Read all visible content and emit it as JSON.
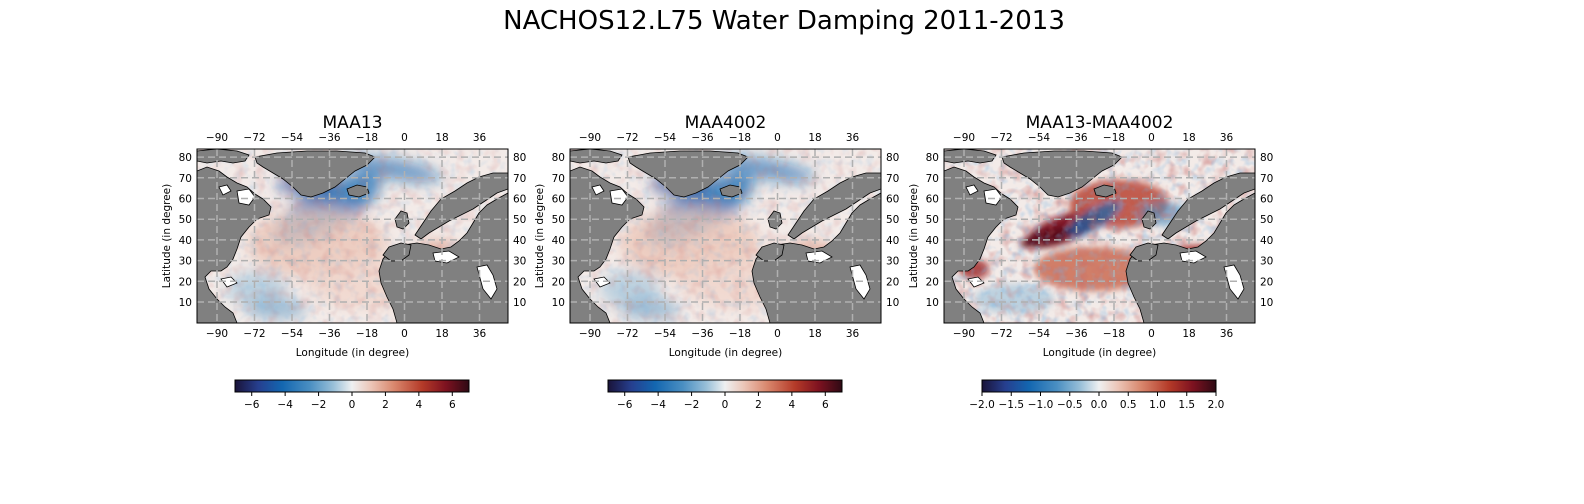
{
  "figure": {
    "title": "NACHOS12.L75 Water Damping 2011-2013"
  },
  "colors": {
    "land": "#808080",
    "cmap": [
      "#1a1339",
      "#263f8f",
      "#1366b0",
      "#4a8fc2",
      "#98bfd8",
      "#e8eef1",
      "#f4e7e3",
      "#e3ab9a",
      "#c65a3f",
      "#9c1f1f",
      "#5b0b1e",
      "#2e0a14"
    ]
  },
  "panels": [
    {
      "title": "MAA13",
      "xlabel": "Longitude (in degree)",
      "ylabel": "Latitude (in degree)",
      "lon_ticks": [
        "−90",
        "−72",
        "−54",
        "−36",
        "−18",
        "0",
        "18",
        "36"
      ],
      "lat_ticks": [
        "10",
        "20",
        "30",
        "40",
        "50",
        "60",
        "70",
        "80"
      ],
      "colorbar": {
        "ticks": [
          "−6",
          "−4",
          "−2",
          "0",
          "2",
          "4",
          "6"
        ],
        "range": [
          -7,
          7
        ]
      },
      "field": "absolute"
    },
    {
      "title": "MAA4002",
      "xlabel": "Longitude (in degree)",
      "ylabel": "Latitude (in degree)",
      "lon_ticks": [
        "−90",
        "−72",
        "−54",
        "−36",
        "−18",
        "0",
        "18",
        "36"
      ],
      "lat_ticks": [
        "10",
        "20",
        "30",
        "40",
        "50",
        "60",
        "70",
        "80"
      ],
      "colorbar": {
        "ticks": [
          "−6",
          "−4",
          "−2",
          "0",
          "2",
          "4",
          "6"
        ],
        "range": [
          -7,
          7
        ]
      },
      "field": "absolute"
    },
    {
      "title": "MAA13-MAA4002",
      "xlabel": "Longitude (in degree)",
      "ylabel": "Latitude (in degree)",
      "lon_ticks": [
        "−90",
        "−72",
        "−54",
        "−36",
        "−18",
        "0",
        "18",
        "36"
      ],
      "lat_ticks": [
        "10",
        "20",
        "30",
        "40",
        "50",
        "60",
        "70",
        "80"
      ],
      "colorbar": {
        "ticks": [
          "−2.0",
          "−1.5",
          "−1.0",
          "−0.5",
          "0.0",
          "0.5",
          "1.0",
          "1.5",
          "2.0"
        ],
        "range": [
          -2,
          2
        ]
      },
      "field": "difference"
    }
  ]
}
